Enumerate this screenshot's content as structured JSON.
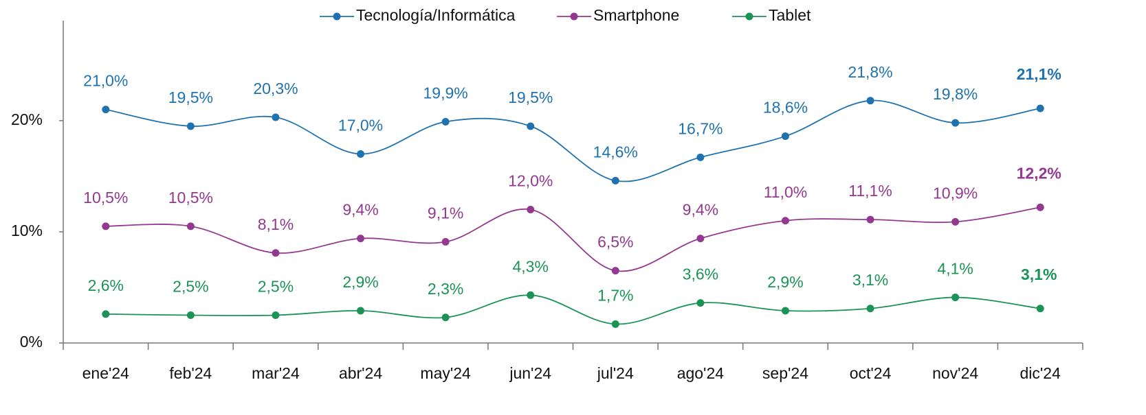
{
  "chart_data": {
    "type": "line",
    "categories": [
      "ene'24",
      "feb'24",
      "mar'24",
      "abr'24",
      "may'24",
      "jun'24",
      "jul'24",
      "ago'24",
      "sep'24",
      "oct'24",
      "nov'24",
      "dic'24"
    ],
    "series": [
      {
        "name": "Tecnología/Informática",
        "color": "#1f72ae",
        "values": [
          21.0,
          19.5,
          20.3,
          17.0,
          19.9,
          19.5,
          14.6,
          16.7,
          18.6,
          21.8,
          19.8,
          21.1
        ],
        "value_labels": [
          "21,0%",
          "19,5%",
          "20,3%",
          "17,0%",
          "19,9%",
          "19,5%",
          "14,6%",
          "16,7%",
          "18,6%",
          "21,8%",
          "19,8%",
          "21,1%"
        ]
      },
      {
        "name": "Smartphone",
        "color": "#93398f",
        "values": [
          10.5,
          10.5,
          8.1,
          9.4,
          9.1,
          12.0,
          6.5,
          9.4,
          11.0,
          11.1,
          10.9,
          12.2
        ],
        "value_labels": [
          "10,5%",
          "10,5%",
          "8,1%",
          "9,4%",
          "9,1%",
          "12,0%",
          "6,5%",
          "9,4%",
          "11,0%",
          "11,1%",
          "10,9%",
          "12,2%"
        ]
      },
      {
        "name": "Tablet",
        "color": "#1b9357",
        "values": [
          2.6,
          2.5,
          2.5,
          2.9,
          2.3,
          4.3,
          1.7,
          3.6,
          2.9,
          3.1,
          4.1,
          3.1
        ],
        "value_labels": [
          "2,6%",
          "2,5%",
          "2,5%",
          "2,9%",
          "2,3%",
          "4,3%",
          "1,7%",
          "3,6%",
          "2,9%",
          "3,1%",
          "4,1%",
          "3,1%"
        ]
      }
    ],
    "ylim": [
      0,
      29
    ],
    "yticks": [
      {
        "value": 0,
        "label": "0%"
      },
      {
        "value": 10,
        "label": "10%"
      },
      {
        "value": 20,
        "label": "20%"
      }
    ],
    "grid": false,
    "legend": "top"
  }
}
